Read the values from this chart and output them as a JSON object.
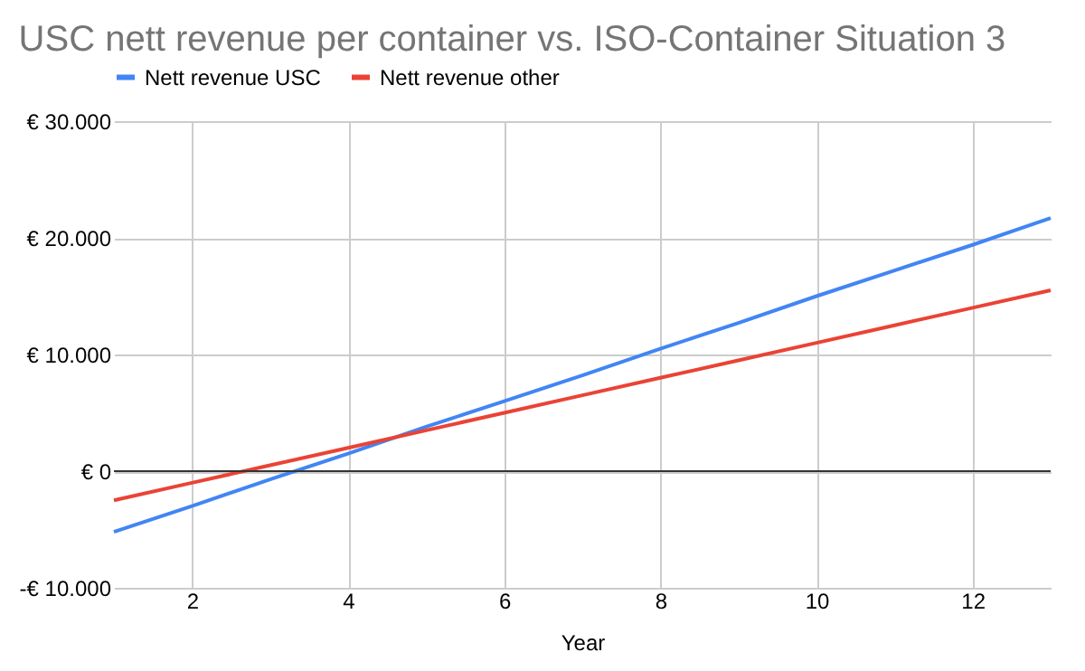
{
  "chart_data": {
    "type": "line",
    "title": "USC nett revenue per container vs. ISO-Container Situation 3",
    "xlabel": "Year",
    "x": [
      1,
      2,
      3,
      4,
      5,
      6,
      7,
      8,
      9,
      10,
      11,
      12,
      13
    ],
    "series": [
      {
        "name": "Nett revenue USC",
        "color": "#4285f4",
        "values": [
          -5200,
          -3000,
          -700,
          1500,
          3800,
          6000,
          8200,
          10500,
          12700,
          15000,
          17200,
          19400,
          21700
        ]
      },
      {
        "name": "Nett revenue other",
        "color": "#ea4335",
        "values": [
          -2500,
          -1000,
          500,
          2000,
          3500,
          5000,
          6500,
          8000,
          9500,
          11000,
          12500,
          14000,
          15500
        ]
      }
    ],
    "xlim": [
      1,
      13
    ],
    "xticks": [
      2,
      4,
      6,
      8,
      10,
      12
    ],
    "ylim": [
      -10000,
      30000
    ],
    "yticks": [
      {
        "value": -10000,
        "label": "-€ 10.000"
      },
      {
        "value": 0,
        "label": "€ 0"
      },
      {
        "value": 10000,
        "label": "€ 10.000"
      },
      {
        "value": 20000,
        "label": "€ 20.000"
      },
      {
        "value": 30000,
        "label": "€ 30.000"
      }
    ],
    "ref_lines": [
      {
        "axis": "y",
        "value": 0,
        "color": "#333333"
      }
    ],
    "grid": true,
    "legend": "top",
    "marker": "none",
    "line_style": "solid"
  }
}
